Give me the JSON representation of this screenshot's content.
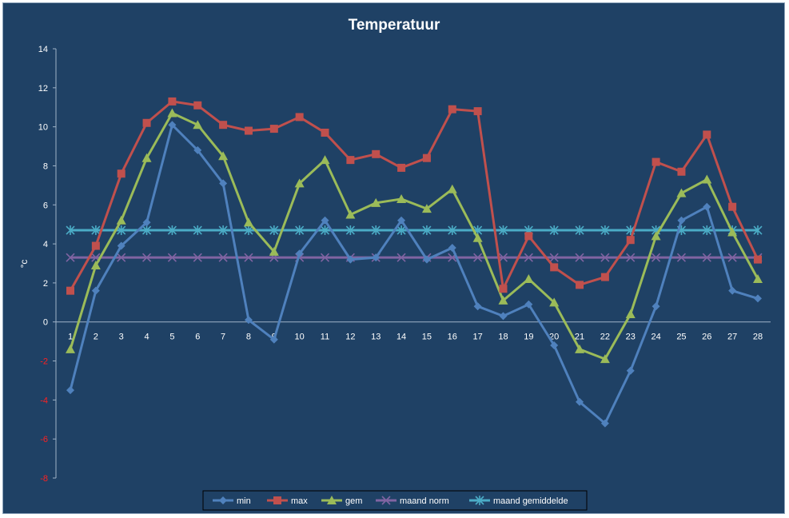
{
  "chart_data": {
    "type": "line",
    "title": "Temperatuur",
    "xlabel": "",
    "ylabel": "°c",
    "categories": [
      "1",
      "2",
      "3",
      "4",
      "5",
      "6",
      "7",
      "8",
      "9",
      "10",
      "11",
      "12",
      "13",
      "14",
      "15",
      "16",
      "17",
      "18",
      "19",
      "20",
      "21",
      "22",
      "23",
      "24",
      "25",
      "26",
      "27",
      "28"
    ],
    "ylim": [
      -8,
      14
    ],
    "yticks": [
      14,
      12,
      10,
      8,
      6,
      4,
      2,
      0,
      -2,
      -4,
      -6,
      -8
    ],
    "grid": false,
    "legend_position": "bottom",
    "series": [
      {
        "name": "min",
        "color": "#4f81bd",
        "marker": "diamond",
        "values": [
          -3.5,
          1.6,
          3.9,
          5.1,
          10.1,
          8.8,
          7.1,
          0.1,
          -0.9,
          3.5,
          5.2,
          3.2,
          3.3,
          5.2,
          3.2,
          3.8,
          0.8,
          0.3,
          0.9,
          -1.2,
          -4.1,
          -5.2,
          -2.5,
          0.8,
          5.2,
          5.9,
          1.6,
          1.2
        ]
      },
      {
        "name": "max",
        "color": "#c0504d",
        "marker": "square",
        "values": [
          1.6,
          3.9,
          7.6,
          10.2,
          11.3,
          11.1,
          10.1,
          9.8,
          9.9,
          10.5,
          9.7,
          8.3,
          8.6,
          7.9,
          8.4,
          10.9,
          10.8,
          1.7,
          4.4,
          2.8,
          1.9,
          2.3,
          4.2,
          8.2,
          7.7,
          9.6,
          5.9,
          3.2
        ]
      },
      {
        "name": "gem",
        "color": "#9bbb59",
        "marker": "triangle",
        "values": [
          -1.4,
          2.9,
          5.2,
          8.4,
          10.7,
          10.1,
          8.5,
          5.1,
          3.6,
          7.1,
          8.3,
          5.5,
          6.1,
          6.3,
          5.8,
          6.8,
          4.3,
          1.1,
          2.2,
          1.0,
          -1.4,
          -1.9,
          0.4,
          4.4,
          6.6,
          7.3,
          4.6,
          2.2
        ]
      },
      {
        "name": "maand norm",
        "color": "#8064a2",
        "marker": "x",
        "values": [
          3.3,
          3.3,
          3.3,
          3.3,
          3.3,
          3.3,
          3.3,
          3.3,
          3.3,
          3.3,
          3.3,
          3.3,
          3.3,
          3.3,
          3.3,
          3.3,
          3.3,
          3.3,
          3.3,
          3.3,
          3.3,
          3.3,
          3.3,
          3.3,
          3.3,
          3.3,
          3.3,
          3.3
        ]
      },
      {
        "name": "maand gemiddelde",
        "color": "#4bacc6",
        "marker": "star",
        "values": [
          4.7,
          4.7,
          4.7,
          4.7,
          4.7,
          4.7,
          4.7,
          4.7,
          4.7,
          4.7,
          4.7,
          4.7,
          4.7,
          4.7,
          4.7,
          4.7,
          4.7,
          4.7,
          4.7,
          4.7,
          4.7,
          4.7,
          4.7,
          4.7,
          4.7,
          4.7,
          4.7,
          4.7
        ]
      }
    ]
  }
}
